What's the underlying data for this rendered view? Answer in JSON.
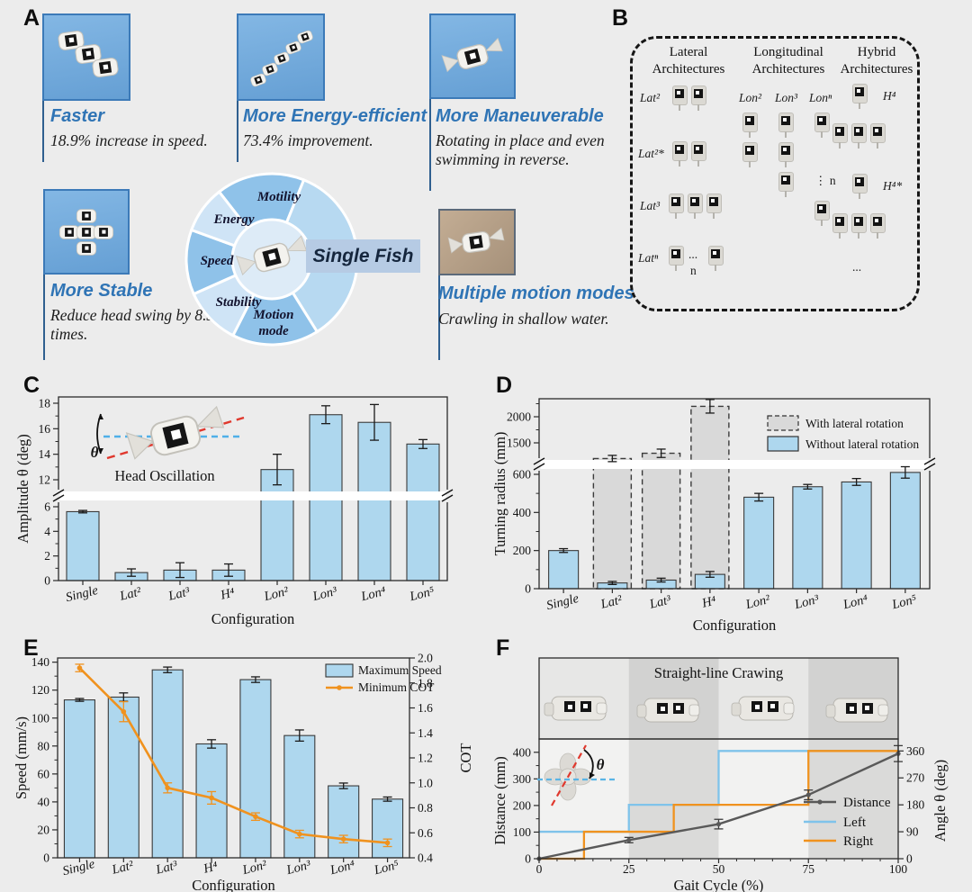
{
  "panels": {
    "a": "A",
    "b": "B",
    "c": "C",
    "d": "D",
    "e": "E",
    "f": "F"
  },
  "colors": {
    "accent_blue": "#2f74b5",
    "bar_fill": "#aed7ee",
    "bar_gray": "#d9d9d9",
    "orange": "#f0921e",
    "step_blue": "#7fc3ea",
    "line_gray": "#595959",
    "thumb_blue": "#74abdc"
  },
  "panelA": {
    "cards": [
      {
        "title": "Faster",
        "desc": "18.9% increase in speed."
      },
      {
        "title": "More Energy-efficient",
        "desc": "73.4% improvement."
      },
      {
        "title": "More Maneuverable",
        "desc": "Rotating in place and even swimming in reverse."
      },
      {
        "title": "More Stable",
        "desc": "Reduce head swing by 8.3 times."
      },
      {
        "title": "Multiple motion modes",
        "desc": "Crawling in shallow water."
      }
    ],
    "wheel": {
      "segments": [
        "Motility",
        "Energy",
        "Speed",
        "Stability",
        "Motion mode"
      ],
      "center_label": "Single Fish"
    }
  },
  "panelB": {
    "columns": [
      {
        "header": "Lateral Architectures",
        "rows": [
          "Lat²",
          "Lat²*",
          "Lat³",
          "Latⁿ"
        ]
      },
      {
        "header": "Longitudinal Architectures",
        "rows": [
          "Lon²",
          "Lon³",
          "Lonⁿ"
        ]
      },
      {
        "header": "Hybrid Architectures",
        "rows": [
          "H⁴",
          "H⁴*"
        ]
      }
    ],
    "notes": {
      "vdots": "⋮",
      "n": "n",
      "ellipsis": "..."
    }
  },
  "chart_data": [
    {
      "panel": "C",
      "type": "bar",
      "xlabel": "Configuration",
      "ylabel": "Amplitude θ (deg)",
      "categories": [
        "Single",
        "Lat²",
        "Lat³",
        "H⁴",
        "Lon²",
        "Lon³",
        "Lon⁴",
        "Lon⁵"
      ],
      "values": [
        5.6,
        0.65,
        0.85,
        0.85,
        12.8,
        17.1,
        16.5,
        14.8
      ],
      "errors": [
        0.1,
        0.3,
        0.6,
        0.5,
        1.2,
        0.7,
        1.4,
        0.35
      ],
      "axis_break": {
        "lower_range": [
          0,
          7
        ],
        "lower_ticks": [
          0,
          2,
          4,
          6
        ],
        "upper_range": [
          11,
          18.5
        ],
        "upper_ticks": [
          12,
          14,
          16,
          18
        ]
      },
      "inset_symbol": "θ",
      "inset_label": "Head Oscillation",
      "grid": false
    },
    {
      "panel": "D",
      "type": "bar",
      "xlabel": "Configuration",
      "ylabel": "Turning radius (mm)",
      "categories": [
        "Single",
        "Lat²",
        "Lat³",
        "H⁴",
        "Lon²",
        "Lon³",
        "Lon⁴",
        "Lon⁵"
      ],
      "series": [
        {
          "name": "With lateral rotation",
          "style": "gray-dashed",
          "values": [
            null,
            1200,
            1300,
            2200,
            null,
            null,
            null,
            null
          ],
          "errors": [
            null,
            60,
            80,
            130,
            null,
            null,
            null,
            null
          ]
        },
        {
          "name": "Without lateral rotation",
          "style": "blue",
          "values": [
            200,
            30,
            45,
            75,
            480,
            535,
            560,
            610
          ],
          "errors": [
            10,
            8,
            10,
            15,
            20,
            12,
            18,
            30
          ]
        }
      ],
      "axis_break": {
        "lower_range": [
          0,
          660
        ],
        "lower_ticks": [
          0,
          200,
          400,
          600
        ],
        "upper_range": [
          1020,
          2345
        ],
        "upper_ticks": [
          1500,
          2000
        ]
      },
      "legend_position": "top-right",
      "grid": false
    },
    {
      "panel": "E",
      "type": "bar+line",
      "xlabel": "Configuration",
      "ylabel_left": "Speed (mm/s)",
      "ylabel_right": "COT",
      "categories": [
        "Single",
        "Lat²",
        "Lat³",
        "H⁴",
        "Lon²",
        "Lon³",
        "Lon⁴",
        "Lon⁵"
      ],
      "series": [
        {
          "name": "Maximum Speed",
          "axis": "left",
          "type": "bar",
          "values": [
            113,
            115,
            134.5,
            81.5,
            127.5,
            87.5,
            51.5,
            42
          ],
          "errors": [
            1,
            3,
            2,
            3,
            2,
            4,
            2,
            1.5
          ]
        },
        {
          "name": "Minimum COT",
          "axis": "right",
          "type": "line",
          "values": [
            1.92,
            1.57,
            0.96,
            0.88,
            0.73,
            0.59,
            0.55,
            0.52
          ],
          "errors": [
            0.03,
            0.08,
            0.04,
            0.05,
            0.03,
            0.03,
            0.03,
            0.03
          ]
        }
      ],
      "ylim_left": [
        0,
        143
      ],
      "yticks_left": [
        0,
        20,
        40,
        60,
        80,
        100,
        120,
        140
      ],
      "ylim_right": [
        0.4,
        2.0
      ],
      "yticks_right": [
        0.4,
        0.6,
        0.8,
        1.0,
        1.2,
        1.4,
        1.6,
        1.8,
        2.0
      ],
      "legend_position": "top-right",
      "grid": false
    },
    {
      "panel": "F",
      "type": "line+step",
      "strip_title": "Straight-line Crawing",
      "xlabel": "Gait Cycle (%)",
      "ylabel_left": "Distance (mm)",
      "ylabel_right": "Angle θ (deg)",
      "xlim": [
        0,
        100
      ],
      "xticks": [
        0,
        25,
        50,
        75,
        100
      ],
      "ylim_left": [
        0,
        450
      ],
      "yticks_left": [
        0,
        100,
        200,
        300,
        400
      ],
      "yticks_right": [
        0,
        90,
        180,
        270,
        360
      ],
      "right_deg_to_mm": 1.125,
      "shaded_bands": [
        [
          25,
          50
        ],
        [
          75,
          100
        ]
      ],
      "series": [
        {
          "name": "Distance",
          "axis": "left",
          "type": "line-markers",
          "x": [
            0,
            25,
            50,
            75,
            100
          ],
          "y": [
            0,
            70,
            130,
            240,
            395
          ],
          "errors": [
            0,
            10,
            18,
            18,
            30
          ]
        },
        {
          "name": "Left",
          "axis": "right",
          "type": "step",
          "x": [
            0,
            25,
            25,
            50,
            50,
            100
          ],
          "y": [
            90,
            90,
            180,
            180,
            360,
            360
          ]
        },
        {
          "name": "Right",
          "axis": "right",
          "type": "step",
          "x": [
            0,
            12.5,
            12.5,
            37.5,
            37.5,
            75,
            75,
            100
          ],
          "y": [
            0,
            0,
            90,
            90,
            180,
            180,
            360,
            360
          ]
        }
      ],
      "inset_symbol": "θ",
      "grid": false
    }
  ]
}
